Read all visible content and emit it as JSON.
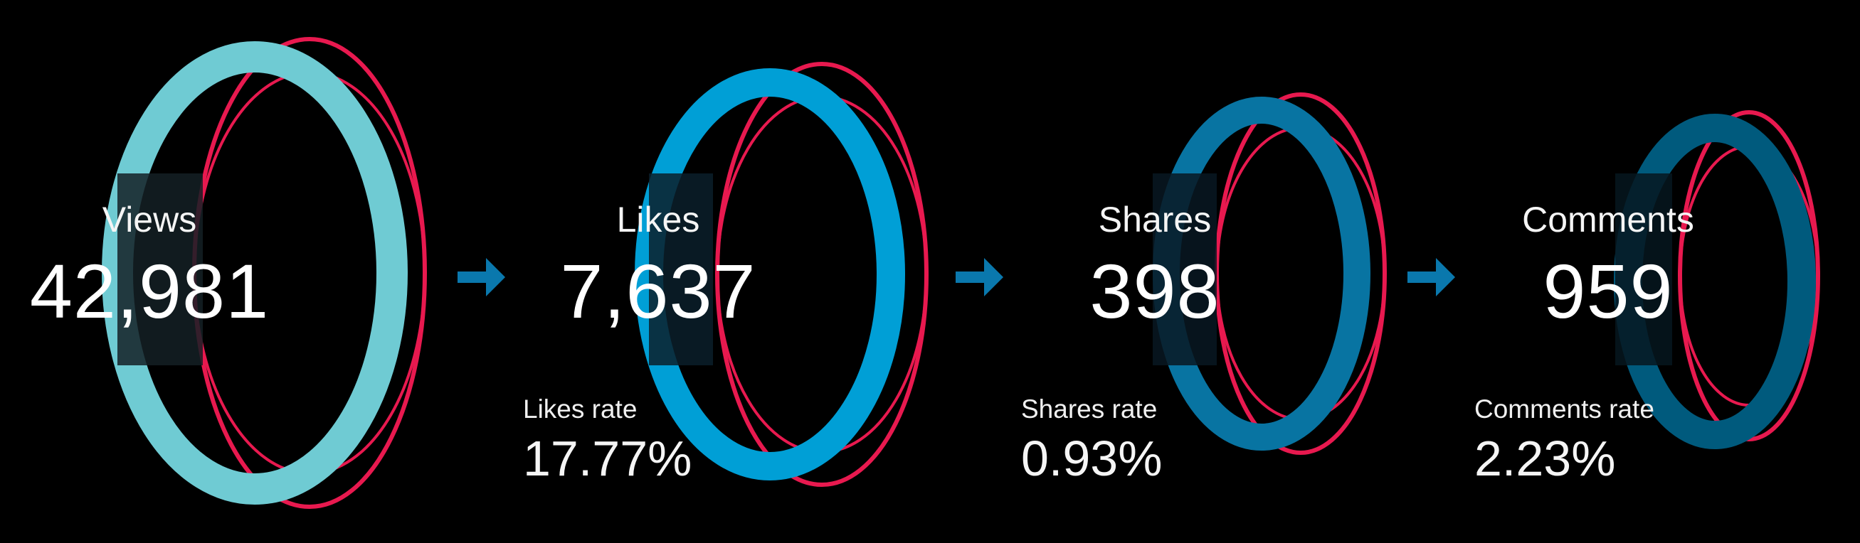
{
  "colors": {
    "background": "#000000",
    "accent_red": "#e8194f",
    "arrow": "#0a78ad"
  },
  "metrics": [
    {
      "label": "Views",
      "value": "42,981",
      "color": "#6fcbd3",
      "rate_label": "",
      "rate_value": ""
    },
    {
      "label": "Likes",
      "value": "7,637",
      "color": "#009fd6",
      "rate_label": "Likes rate",
      "rate_value": "17.77%"
    },
    {
      "label": "Shares",
      "value": "398",
      "color": "#0874a2",
      "rate_label": "Shares rate",
      "rate_value": "0.93%"
    },
    {
      "label": "Comments",
      "value": "959",
      "color": "#005a7d",
      "rate_label": "Comments rate",
      "rate_value": "2.23%"
    }
  ],
  "arrows": [
    "arrow-right-icon",
    "arrow-right-icon",
    "arrow-right-icon"
  ]
}
